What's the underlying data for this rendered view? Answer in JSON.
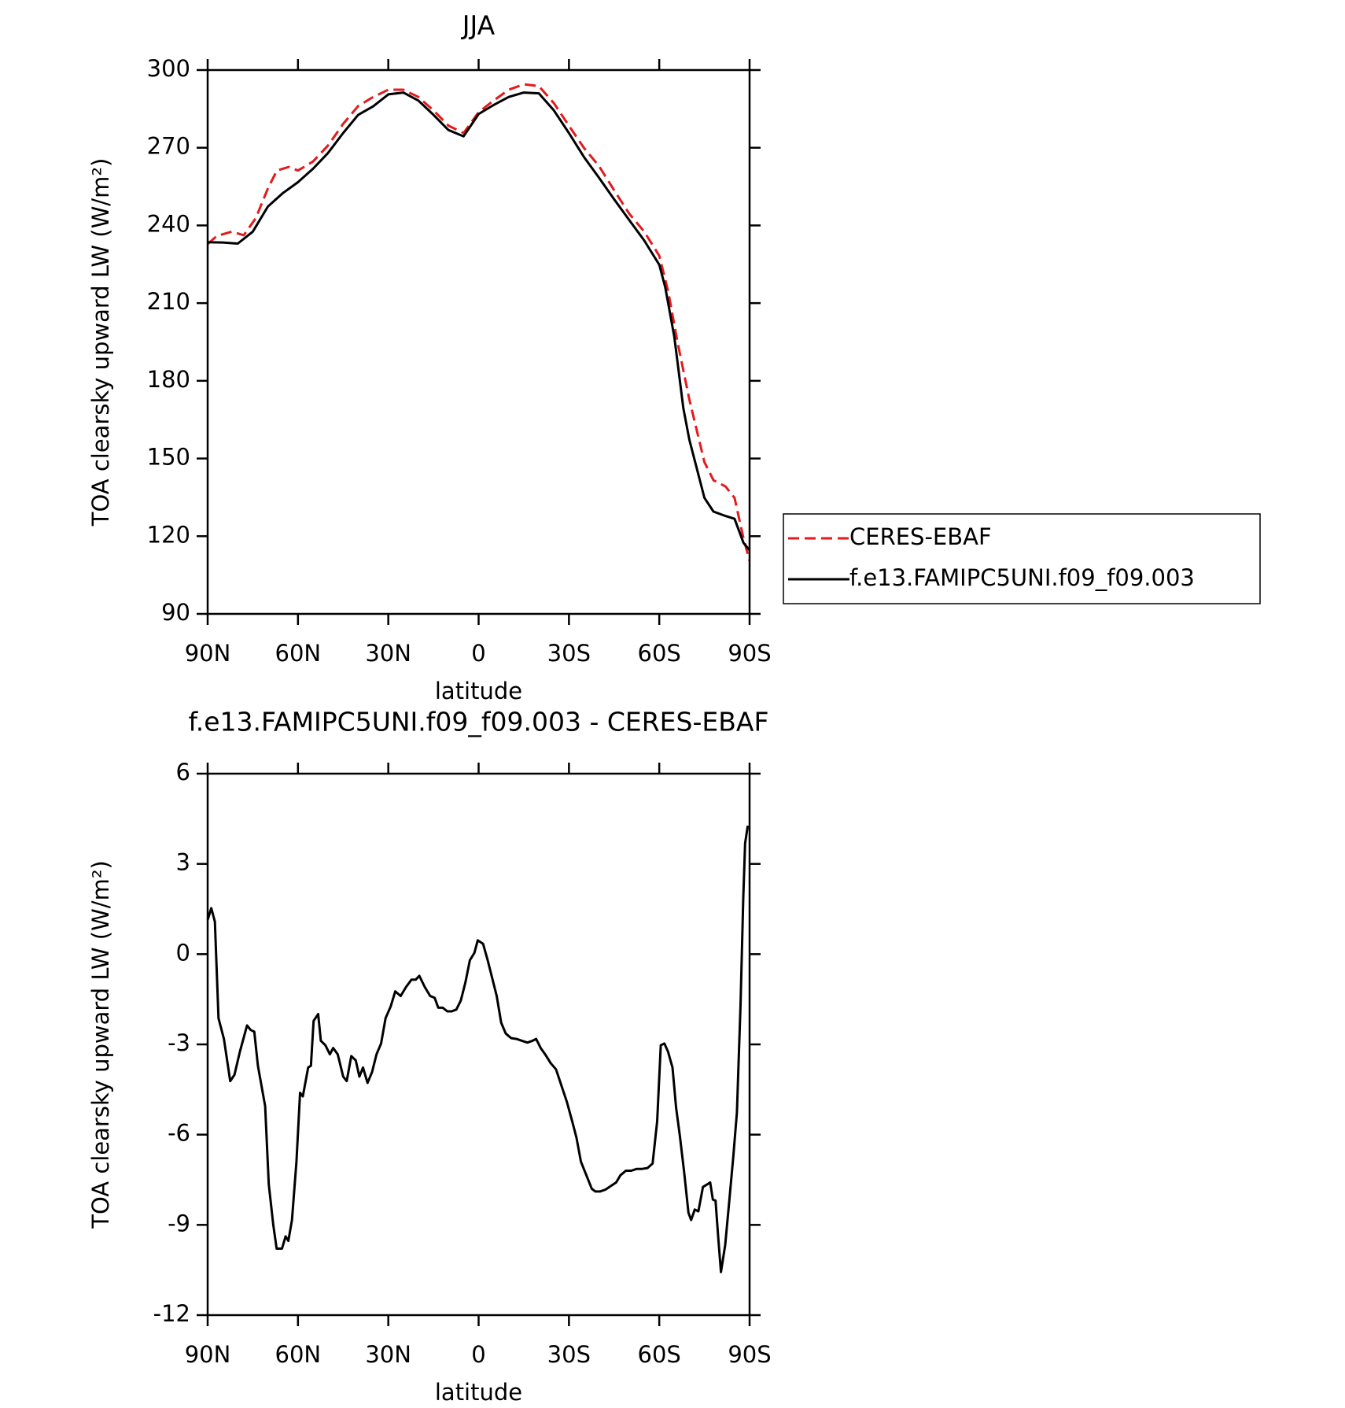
{
  "chart_data": [
    {
      "type": "line",
      "title": "JJA",
      "xlabel": "latitude",
      "ylabel": "TOA clearsky upward LW (W/m²)",
      "xlim": [
        90,
        -90
      ],
      "xticks": [
        {
          "value": 90,
          "label": "90N"
        },
        {
          "value": 60,
          "label": "60N"
        },
        {
          "value": 30,
          "label": "30N"
        },
        0,
        {
          "value": -30,
          "label": "30S"
        },
        {
          "value": -60,
          "label": "60S"
        },
        {
          "value": -90,
          "label": "90S"
        }
      ],
      "ylim": [
        90,
        300
      ],
      "yticks": [
        90,
        120,
        150,
        180,
        210,
        240,
        270,
        300
      ],
      "legend": "right",
      "series": [
        {
          "name": "CERES-EBAF",
          "color": "#e41a1c",
          "line_style": "dashed",
          "x": [
            90,
            87,
            82,
            78,
            74,
            70,
            67,
            63,
            60,
            55,
            50,
            45,
            40,
            35,
            30,
            25,
            20,
            15,
            10,
            5,
            0,
            -5,
            -10,
            -15,
            -20,
            -25,
            -30,
            -35,
            -40,
            -45,
            -50,
            -55,
            -60,
            -63,
            -66,
            -70,
            -75,
            -78,
            -82,
            -85,
            -88,
            -90
          ],
          "values": [
            232.8,
            235.9,
            237.6,
            236.2,
            242.8,
            254.3,
            261.2,
            262.6,
            261.2,
            264.7,
            270.9,
            279.2,
            286.1,
            289.6,
            292.4,
            292.4,
            289.6,
            284.4,
            278.5,
            275.7,
            283.7,
            288.2,
            292.4,
            294.5,
            293.8,
            287.2,
            278.5,
            269.9,
            262.9,
            253.6,
            244.6,
            237.6,
            228.3,
            214.4,
            195.4,
            172.8,
            148.6,
            141.6,
            139.2,
            134.8,
            119.1,
            110.5
          ]
        },
        {
          "name": "f.e13.FAMIPC5UNI.f09_f09.003",
          "color": "#000000",
          "line_style": "solid",
          "x": [
            90,
            85,
            80,
            75,
            70,
            65,
            60,
            55,
            50,
            45,
            40,
            35,
            30,
            25,
            20,
            15,
            10,
            5,
            0,
            -5,
            -10,
            -15,
            -20,
            -25,
            -30,
            -35,
            -40,
            -45,
            -50,
            -55,
            -60,
            -62,
            -65,
            -68,
            -70,
            -75,
            -78,
            -82,
            -85,
            -88,
            -90
          ],
          "values": [
            233.5,
            233.4,
            233,
            237.6,
            247.3,
            252.5,
            256.7,
            261.9,
            268,
            275.7,
            282.7,
            286,
            290.6,
            291.3,
            288.2,
            282.7,
            276.8,
            274.4,
            283,
            286.5,
            289.6,
            291.3,
            291,
            284.4,
            275.7,
            266.4,
            258.4,
            250.1,
            242.1,
            234.2,
            224.8,
            216.1,
            197,
            169.4,
            157.3,
            134.8,
            129.5,
            127.8,
            126.7,
            117.4,
            114.6
          ]
        }
      ]
    },
    {
      "type": "line",
      "title": "f.e13.FAMIPC5UNI.f09_f09.003 - CERES-EBAF",
      "xlabel": "latitude",
      "ylabel": "TOA clearsky upward LW (W/m²)",
      "xlim": [
        90,
        -90
      ],
      "xticks": [
        {
          "value": 90,
          "label": "90N"
        },
        {
          "value": 60,
          "label": "60N"
        },
        {
          "value": 30,
          "label": "30N"
        },
        0,
        {
          "value": -30,
          "label": "30S"
        },
        {
          "value": -60,
          "label": "60S"
        },
        {
          "value": -90,
          "label": "90S"
        }
      ],
      "ylim": [
        -12,
        6
      ],
      "yticks": [
        -12,
        -9,
        -6,
        -3,
        0,
        3,
        6
      ],
      "series": [
        {
          "color": "#000000",
          "line_style": "solid",
          "x": [
            90,
            88.8,
            87.6,
            86.4,
            84.6,
            82.5,
            81.1,
            79.3,
            76.9,
            75.7,
            74.5,
            73.3,
            70.9,
            69.7,
            68.2,
            67.1,
            65.3,
            64.1,
            63.2,
            62,
            60.5,
            59.3,
            58.4,
            56.6,
            55.7,
            54.8,
            53.3,
            52.4,
            50.9,
            49.4,
            48.3,
            46.8,
            45,
            43.8,
            42.3,
            40.8,
            39.6,
            38.4,
            36.9,
            35.4,
            33.9,
            32.4,
            30.9,
            29.2,
            27.7,
            25.9,
            24.1,
            22.3,
            20.9,
            19.7,
            17.9,
            16.1,
            14.6,
            13.4,
            11.9,
            10.4,
            8.9,
            7.4,
            5.9,
            4.4,
            2.9,
            1.4,
            0.3,
            -1.5,
            -3,
            -4.5,
            -6,
            -7.5,
            -9,
            -10.8,
            -12.6,
            -14.4,
            -16.2,
            -17.9,
            -19.1,
            -20.6,
            -22.1,
            -23.9,
            -25.7,
            -27.5,
            -29.3,
            -31.1,
            -32.5,
            -34,
            -35.8,
            -37.6,
            -38.8,
            -40.3,
            -42.1,
            -43.9,
            -45.7,
            -47.1,
            -48.9,
            -50.7,
            -52.5,
            -54.3,
            -56.1,
            -57.8,
            -59.3,
            -60.5,
            -61.7,
            -62.9,
            -64.4,
            -65.6,
            -66.8,
            -68.2,
            -69.7,
            -70.6,
            -71.8,
            -73,
            -74.5,
            -76,
            -76.9,
            -77.8,
            -78.7,
            -79.6,
            -80.5,
            -81.9,
            -83.1,
            -84.6,
            -85.8,
            -87,
            -87.9,
            -88.5,
            -89.4
          ],
          "values": [
            1.14,
            1.53,
            1.08,
            -2.13,
            -2.82,
            -4.22,
            -4.01,
            -3.24,
            -2.37,
            -2.52,
            -2.58,
            -3.71,
            -5.05,
            -7.65,
            -8.99,
            -9.79,
            -9.79,
            -9.38,
            -9.53,
            -8.84,
            -6.9,
            -4.61,
            -4.73,
            -3.77,
            -3.71,
            -2.22,
            -1.99,
            -2.88,
            -3.03,
            -3.33,
            -3.12,
            -3.33,
            -4.07,
            -4.22,
            -3.39,
            -3.53,
            -4.07,
            -3.77,
            -4.28,
            -3.92,
            -3.33,
            -2.97,
            -2.13,
            -1.74,
            -1.24,
            -1.39,
            -1.09,
            -0.85,
            -0.85,
            -0.72,
            -1.09,
            -1.39,
            -1.45,
            -1.78,
            -1.78,
            -1.9,
            -1.9,
            -1.84,
            -1.54,
            -0.94,
            -0.2,
            0.04,
            0.46,
            0.34,
            -0.2,
            -0.79,
            -1.39,
            -2.28,
            -2.64,
            -2.79,
            -2.82,
            -2.88,
            -2.94,
            -2.88,
            -2.82,
            -3.12,
            -3.33,
            -3.62,
            -3.83,
            -4.37,
            -4.91,
            -5.56,
            -6.1,
            -6.9,
            -7.35,
            -7.8,
            -7.89,
            -7.89,
            -7.83,
            -7.71,
            -7.59,
            -7.35,
            -7.2,
            -7.2,
            -7.14,
            -7.14,
            -7.11,
            -6.96,
            -5.56,
            -3.03,
            -2.97,
            -3.24,
            -3.77,
            -5.11,
            -6.01,
            -7.2,
            -8.6,
            -8.84,
            -8.49,
            -8.55,
            -7.74,
            -7.65,
            -7.59,
            -8.16,
            -8.19,
            -9.44,
            -10.57,
            -9.67,
            -8.37,
            -6.73,
            -5.26,
            -1.69,
            1.89,
            3.68,
            4.27
          ]
        }
      ]
    }
  ]
}
